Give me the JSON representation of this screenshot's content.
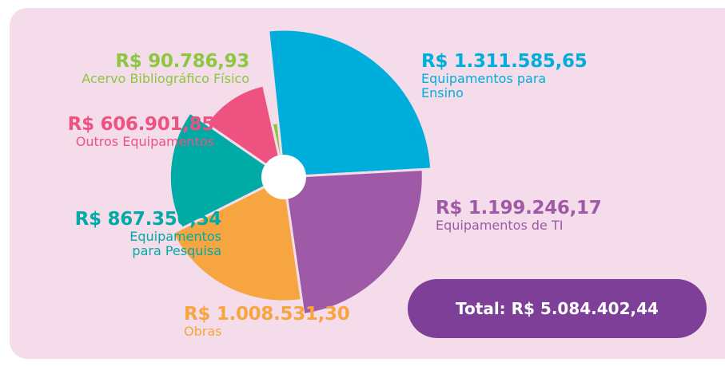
{
  "chart_data": {
    "type": "rose",
    "categories": [
      "Equipamentos para Ensino",
      "Equipamentos de TI",
      "Obras",
      "Equipamentos para Pesquisa",
      "Outros Equipamentos",
      "Acervo Bibliográfico Físico"
    ],
    "values": [
      1311585.65,
      1199246.17,
      1008531.3,
      867350.54,
      606901.85,
      90786.93
    ],
    "value_labels": [
      "R$ 1.311.585,65",
      "R$ 1.199.246,17",
      "R$ 1.008.531,30",
      "R$ 867.350,54",
      "R$ 606.901,85",
      "R$ 90.786,93"
    ],
    "colors": [
      "#00aedb",
      "#9e5aa6",
      "#f7a541",
      "#00aba5",
      "#ee5281",
      "#8dc63f"
    ],
    "total": "Total: R$ 5.084.402,44"
  }
}
